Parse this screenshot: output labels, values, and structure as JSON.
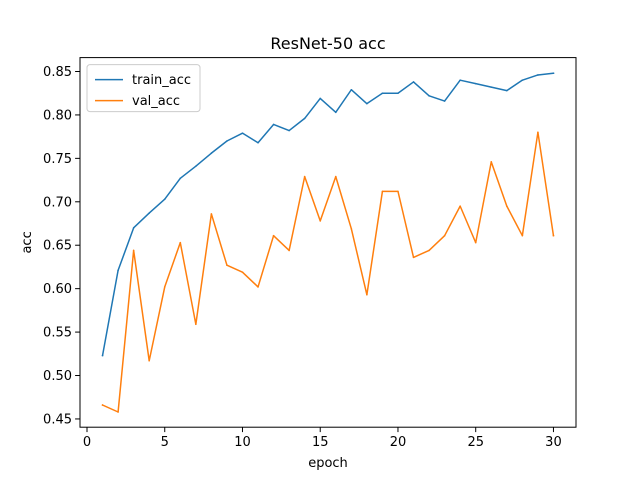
{
  "chart_data": {
    "type": "line",
    "title": "ResNet-50 acc",
    "xlabel": "epoch",
    "ylabel": "acc",
    "xlim": [
      -0.45,
      31.45
    ],
    "ylim": [
      0.4405,
      0.866
    ],
    "xticks": [
      0,
      5,
      10,
      15,
      20,
      25,
      30
    ],
    "yticks": [
      0.45,
      0.5,
      0.55,
      0.6,
      0.65,
      0.7,
      0.75,
      0.8,
      0.85
    ],
    "grid": false,
    "legend_position": "top-left",
    "x": [
      1,
      2,
      3,
      4,
      5,
      6,
      7,
      8,
      9,
      10,
      11,
      12,
      13,
      14,
      15,
      16,
      17,
      18,
      19,
      20,
      21,
      22,
      23,
      24,
      25,
      26,
      27,
      28,
      29,
      30
    ],
    "series": [
      {
        "name": "train_acc",
        "color": "#1f77b4",
        "values": [
          0.523,
          0.621,
          0.67,
          0.687,
          0.703,
          0.727,
          0.741,
          0.756,
          0.77,
          0.779,
          0.768,
          0.789,
          0.782,
          0.796,
          0.819,
          0.803,
          0.829,
          0.813,
          0.825,
          0.825,
          0.838,
          0.822,
          0.816,
          0.84,
          0.836,
          0.832,
          0.828,
          0.84,
          0.846,
          0.848
        ]
      },
      {
        "name": "val_acc",
        "color": "#ff7f0e",
        "values": [
          0.466,
          0.458,
          0.644,
          0.517,
          0.602,
          0.653,
          0.559,
          0.686,
          0.627,
          0.619,
          0.602,
          0.661,
          0.644,
          0.729,
          0.678,
          0.729,
          0.669,
          0.593,
          0.712,
          0.712,
          0.636,
          0.644,
          0.661,
          0.695,
          0.653,
          0.746,
          0.695,
          0.661,
          0.78,
          0.661
        ]
      }
    ]
  }
}
